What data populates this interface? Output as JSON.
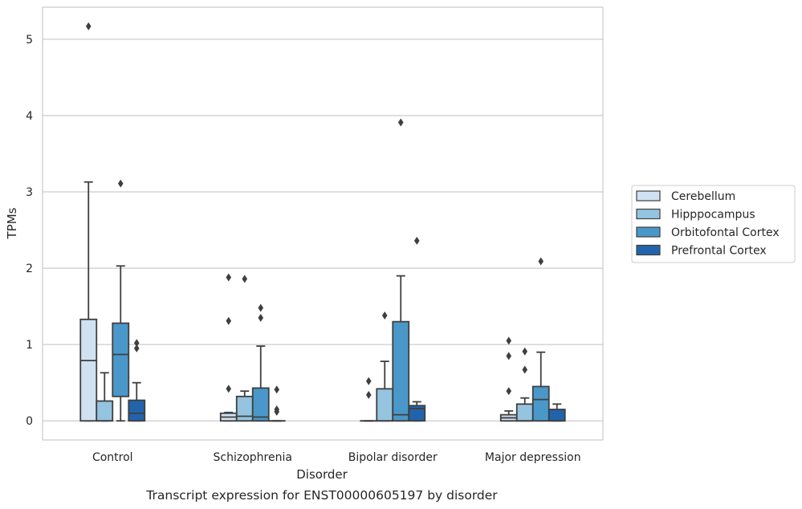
{
  "chart_data": {
    "type": "box",
    "title": "",
    "caption": "Transcript expression for ENST00000605197 by disorder",
    "xlabel": "Disorder",
    "ylabel": "TPMs",
    "ylim": [
      -0.25,
      5.42
    ],
    "yticks": [
      0,
      1,
      2,
      3,
      4,
      5
    ],
    "grid": "horizontal",
    "legend_position": "right",
    "categories": [
      "Control",
      "Schizophrenia",
      "Bipolar disorder",
      "Major depression"
    ],
    "series": [
      {
        "name": "Cerebellum",
        "color": "#d0e1f2",
        "boxes": [
          {
            "whislo": 0,
            "q1": 0,
            "med": 0.79,
            "q3": 1.33,
            "whishi": 3.13,
            "fliers": [
              5.17
            ]
          },
          {
            "whislo": 0,
            "q1": 0,
            "med": 0.05,
            "q3": 0.1,
            "whishi": 0.11,
            "fliers": [
              1.88,
              1.31,
              0.42
            ]
          },
          {
            "whislo": 0,
            "q1": 0,
            "med": 0,
            "q3": 0,
            "whishi": 0,
            "fliers": [
              0.52,
              0.34
            ]
          },
          {
            "whislo": 0,
            "q1": 0,
            "med": 0.04,
            "q3": 0.08,
            "whishi": 0.13,
            "fliers": [
              1.05,
              0.85,
              0.39
            ]
          }
        ]
      },
      {
        "name": "Hipppocampus",
        "color": "#94c4df",
        "boxes": [
          {
            "whislo": 0,
            "q1": 0,
            "med": 0,
            "q3": 0.26,
            "whishi": 0.63,
            "fliers": []
          },
          {
            "whislo": 0,
            "q1": 0,
            "med": 0.06,
            "q3": 0.32,
            "whishi": 0.39,
            "fliers": [
              1.86
            ]
          },
          {
            "whislo": 0,
            "q1": 0,
            "med": 0,
            "q3": 0.42,
            "whishi": 0.78,
            "fliers": [
              1.38
            ]
          },
          {
            "whislo": 0,
            "q1": 0,
            "med": 0,
            "q3": 0.22,
            "whishi": 0.3,
            "fliers": [
              0.91,
              0.67
            ]
          }
        ]
      },
      {
        "name": "Orbitofontal Cortex",
        "color": "#4a98c9",
        "boxes": [
          {
            "whislo": 0,
            "q1": 0.32,
            "med": 0.87,
            "q3": 1.28,
            "whishi": 2.03,
            "fliers": [
              3.11
            ]
          },
          {
            "whislo": 0,
            "q1": 0,
            "med": 0.05,
            "q3": 0.43,
            "whishi": 0.98,
            "fliers": [
              1.48,
              1.35
            ]
          },
          {
            "whislo": 0,
            "q1": 0,
            "med": 0.08,
            "q3": 1.3,
            "whishi": 1.9,
            "fliers": [
              3.91
            ]
          },
          {
            "whislo": 0,
            "q1": 0,
            "med": 0.28,
            "q3": 0.45,
            "whishi": 0.9,
            "fliers": [
              2.09
            ]
          }
        ]
      },
      {
        "name": "Prefrontal Cortex",
        "color": "#2164ab",
        "boxes": [
          {
            "whislo": 0,
            "q1": 0,
            "med": 0.1,
            "q3": 0.27,
            "whishi": 0.5,
            "fliers": [
              1.02,
              0.95
            ]
          },
          {
            "whislo": 0,
            "q1": 0,
            "med": 0,
            "q3": 0,
            "whishi": 0,
            "fliers": [
              0.41,
              0.15,
              0.12
            ]
          },
          {
            "whislo": 0,
            "q1": 0,
            "med": 0.16,
            "q3": 0.2,
            "whishi": 0.25,
            "fliers": [
              2.36
            ]
          },
          {
            "whislo": 0,
            "q1": 0,
            "med": 0,
            "q3": 0.15,
            "whishi": 0.22,
            "fliers": []
          }
        ]
      }
    ]
  }
}
